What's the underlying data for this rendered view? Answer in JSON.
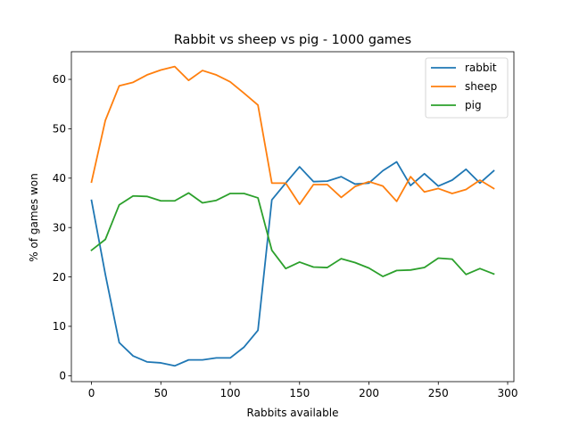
{
  "chart_data": {
    "type": "line",
    "title": "Rabbit vs sheep vs pig  - 1000 games",
    "xlabel": "Rabbits available",
    "ylabel": "% of games won",
    "xlim": [
      -14.5,
      304.5
    ],
    "ylim": [
      -1.2,
      65.6
    ],
    "xticks": [
      0,
      50,
      100,
      150,
      200,
      250,
      300
    ],
    "yticks": [
      0,
      10,
      20,
      30,
      40,
      50,
      60
    ],
    "grid": false,
    "legend_position": "top-right",
    "x": [
      0,
      10,
      20,
      30,
      40,
      50,
      60,
      70,
      80,
      90,
      100,
      110,
      120,
      130,
      140,
      150,
      160,
      170,
      180,
      190,
      200,
      210,
      220,
      230,
      240,
      250,
      260,
      270,
      280,
      290
    ],
    "series": [
      {
        "name": "rabbit",
        "color": "#1f77b4",
        "values": [
          35.5,
          20.5,
          6.7,
          4.0,
          2.8,
          2.6,
          2.0,
          3.2,
          3.2,
          3.6,
          3.6,
          5.8,
          9.2,
          35.6,
          39.0,
          42.3,
          39.3,
          39.4,
          40.3,
          38.8,
          39.0,
          41.5,
          43.3,
          38.5,
          40.9,
          38.4,
          39.6,
          41.8,
          39.0,
          41.5
        ]
      },
      {
        "name": "sheep",
        "color": "#ff7f0e",
        "values": [
          39.2,
          51.7,
          58.7,
          59.4,
          60.9,
          61.9,
          62.6,
          59.8,
          61.8,
          60.9,
          59.5,
          57.2,
          54.8,
          39.0,
          39.0,
          34.7,
          38.7,
          38.7,
          36.1,
          38.3,
          39.3,
          38.4,
          35.3,
          40.3,
          37.2,
          37.9,
          36.9,
          37.7,
          39.6,
          37.9
        ]
      },
      {
        "name": "pig",
        "color": "#2ca02c",
        "values": [
          25.4,
          27.6,
          34.6,
          36.4,
          36.3,
          35.4,
          35.4,
          37.0,
          35.0,
          35.5,
          36.9,
          36.9,
          36.0,
          25.4,
          21.7,
          23.0,
          22.0,
          21.9,
          23.7,
          22.9,
          21.8,
          20.1,
          21.3,
          21.4,
          21.9,
          23.8,
          23.6,
          20.5,
          21.7,
          20.6
        ]
      }
    ]
  }
}
